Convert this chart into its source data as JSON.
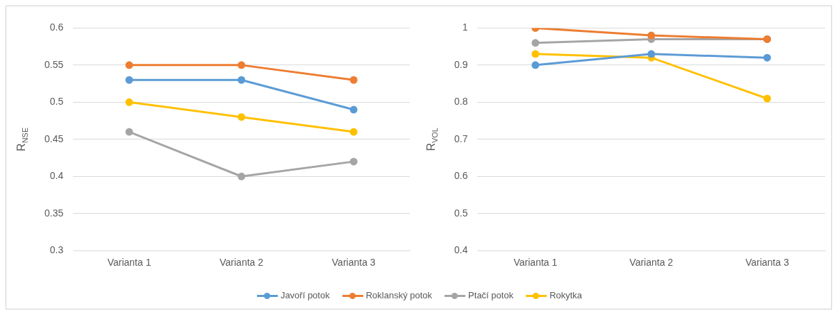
{
  "chart_data": [
    {
      "type": "line",
      "ylabel": "R$_{NSE}$",
      "categories": [
        "Varianta 1",
        "Varianta 2",
        "Varianta 3"
      ],
      "ylim": [
        0.3,
        0.6
      ],
      "yticks": [
        0.3,
        0.35,
        0.4,
        0.45,
        0.5,
        0.55,
        0.6
      ],
      "grid": "y",
      "legend": "bottom",
      "marker": "circle",
      "line_style": "solid",
      "series": [
        {
          "name": "Javoří potok",
          "color": "#5b9bd5",
          "values": [
            0.53,
            0.53,
            0.49
          ]
        },
        {
          "name": "Roklanský potok",
          "color": "#ed7d31",
          "values": [
            0.55,
            0.55,
            0.53
          ]
        },
        {
          "name": "Ptačí potok",
          "color": "#a5a5a5",
          "values": [
            0.46,
            0.4,
            0.42
          ]
        },
        {
          "name": "Rokytka",
          "color": "#ffc000",
          "values": [
            0.5,
            0.48,
            0.46
          ]
        }
      ]
    },
    {
      "type": "line",
      "ylabel": "R$_{VOL}$",
      "categories": [
        "Varianta 1",
        "Varianta 2",
        "Varianta 3"
      ],
      "ylim": [
        0.4,
        1
      ],
      "yticks": [
        0.4,
        0.5,
        0.6,
        0.7,
        0.8,
        0.9,
        1
      ],
      "grid": "y",
      "marker": "circle",
      "line_style": "solid",
      "series": [
        {
          "color": "#5b9bd5",
          "values": [
            0.9,
            0.93,
            0.92
          ]
        },
        {
          "color": "#ed7d31",
          "values": [
            1.0,
            0.98,
            0.97
          ]
        },
        {
          "color": "#a5a5a5",
          "values": [
            0.96,
            0.97,
            0.97
          ]
        },
        {
          "color": "#ffc000",
          "values": [
            0.93,
            0.92,
            0.81
          ]
        }
      ]
    }
  ]
}
